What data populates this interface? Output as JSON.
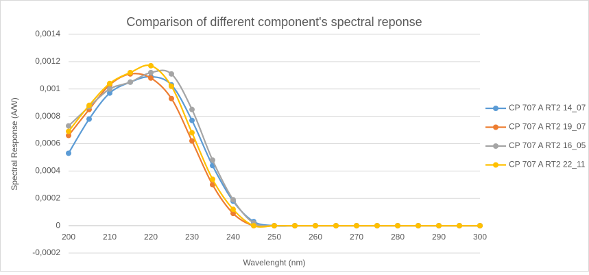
{
  "chart_data": {
    "type": "line",
    "title": "Comparison of different component's spectral reponse",
    "x_label": "Wavelenght (nm)",
    "y_label": "Spectral Response (A/W)",
    "x": [
      200,
      205,
      210,
      215,
      220,
      225,
      230,
      235,
      240,
      245,
      250,
      255,
      260,
      265,
      270,
      275,
      280,
      285,
      290,
      295,
      300
    ],
    "xlim": [
      200,
      300
    ],
    "xticks": [
      200,
      210,
      220,
      230,
      240,
      250,
      260,
      270,
      280,
      290,
      300
    ],
    "ylim": [
      -0.0002,
      0.0014
    ],
    "yticks": [
      {
        "value": -0.0002,
        "label": "-0,0002"
      },
      0,
      {
        "value": 0.0002,
        "label": "0,0002"
      },
      {
        "value": 0.0004,
        "label": "0,0004"
      },
      {
        "value": 0.0006,
        "label": "0,0006"
      },
      {
        "value": 0.0008,
        "label": "0,0008"
      },
      {
        "value": 0.001,
        "label": "0,001"
      },
      {
        "value": 0.0012,
        "label": "0,0012"
      },
      {
        "value": 0.0014,
        "label": "0,0014"
      }
    ],
    "grid": true,
    "smooth": true,
    "legend": "right",
    "series": [
      {
        "name": "CP 707 A RT2 14_07",
        "color": "#5b9bd5",
        "values": [
          0.00053,
          0.00078,
          0.00097,
          0.00105,
          0.00109,
          0.00103,
          0.00077,
          0.00044,
          0.00018,
          3e-05,
          0,
          0,
          0,
          0,
          0,
          0,
          0,
          0,
          0,
          0,
          0
        ]
      },
      {
        "name": "CP 707 A RT2 19_07",
        "color": "#ed7d31",
        "values": [
          0.00066,
          0.00085,
          0.00103,
          0.00111,
          0.00108,
          0.00093,
          0.00062,
          0.0003,
          9e-05,
          0,
          0,
          0,
          0,
          0,
          0,
          0,
          0,
          0,
          0,
          0,
          0
        ]
      },
      {
        "name": "CP 707 A RT2 16_05",
        "color": "#a5a5a5",
        "values": [
          0.00073,
          0.00087,
          0.001,
          0.00105,
          0.00112,
          0.00111,
          0.00085,
          0.00048,
          0.00019,
          2e-05,
          0,
          0,
          0,
          0,
          0,
          0,
          0,
          0,
          0,
          0,
          0
        ]
      },
      {
        "name": "CP 707 A RT2 22_11",
        "color": "#ffc000",
        "values": [
          0.00069,
          0.00088,
          0.00104,
          0.00112,
          0.00117,
          0.00102,
          0.00068,
          0.00034,
          0.00012,
          0,
          0,
          0,
          0,
          0,
          0,
          0,
          0,
          0,
          0,
          0,
          0
        ]
      }
    ]
  }
}
